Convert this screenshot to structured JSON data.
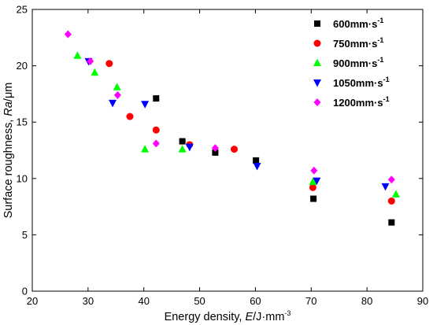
{
  "chart_data": {
    "type": "scatter",
    "title": "",
    "xlabel": {
      "main": "Energy density, ",
      "italic": "E",
      "unit": "/J·mm",
      "sup": "-3"
    },
    "ylabel": {
      "main": "Surface roughness, ",
      "italic": "Ra",
      "unit": "/μm"
    },
    "xlim": [
      20,
      90
    ],
    "ylim": [
      0,
      25
    ],
    "xticks": [
      20,
      30,
      40,
      50,
      60,
      70,
      80,
      90
    ],
    "yticks": [
      0,
      5,
      10,
      15,
      20,
      25
    ],
    "grid": false,
    "legend_position": "top-right",
    "series": [
      {
        "name": "600mm·s",
        "sup": "-1",
        "marker": "square",
        "color": "#000000",
        "points": [
          [
            42.2,
            17.1
          ],
          [
            46.9,
            13.3
          ],
          [
            52.8,
            12.3
          ],
          [
            60.1,
            11.6
          ],
          [
            70.4,
            8.2
          ],
          [
            84.4,
            6.1
          ]
        ]
      },
      {
        "name": "750mm·s",
        "sup": "-1",
        "marker": "circle",
        "color": "#ff0000",
        "points": [
          [
            33.8,
            20.2
          ],
          [
            37.5,
            15.5
          ],
          [
            42.2,
            14.3
          ],
          [
            48.2,
            13.0
          ],
          [
            56.2,
            12.6
          ],
          [
            70.3,
            9.2
          ],
          [
            84.4,
            8.0
          ]
        ]
      },
      {
        "name": "900mm·s",
        "sup": "-1",
        "marker": "triangle-up",
        "color": "#00ff00",
        "points": [
          [
            28.1,
            20.9
          ],
          [
            31.2,
            19.4
          ],
          [
            35.2,
            18.1
          ],
          [
            40.2,
            12.6
          ],
          [
            46.9,
            12.6
          ],
          [
            70.3,
            9.7
          ],
          [
            85.2,
            8.6
          ]
        ]
      },
      {
        "name": "1050mm·s",
        "sup": "-1",
        "marker": "triangle-down",
        "color": "#0000ff",
        "points": [
          [
            30.1,
            20.4
          ],
          [
            34.4,
            16.7
          ],
          [
            40.2,
            16.6
          ],
          [
            48.2,
            12.8
          ],
          [
            60.3,
            11.1
          ],
          [
            71.0,
            9.8
          ],
          [
            83.3,
            9.3
          ]
        ]
      },
      {
        "name": "1200mm·s",
        "sup": "-1",
        "marker": "diamond",
        "color": "#ff00ff",
        "points": [
          [
            26.4,
            22.8
          ],
          [
            30.4,
            20.4
          ],
          [
            35.3,
            17.4
          ],
          [
            42.2,
            13.1
          ],
          [
            52.8,
            12.7
          ],
          [
            70.5,
            10.7
          ],
          [
            84.4,
            9.9
          ]
        ]
      }
    ]
  }
}
